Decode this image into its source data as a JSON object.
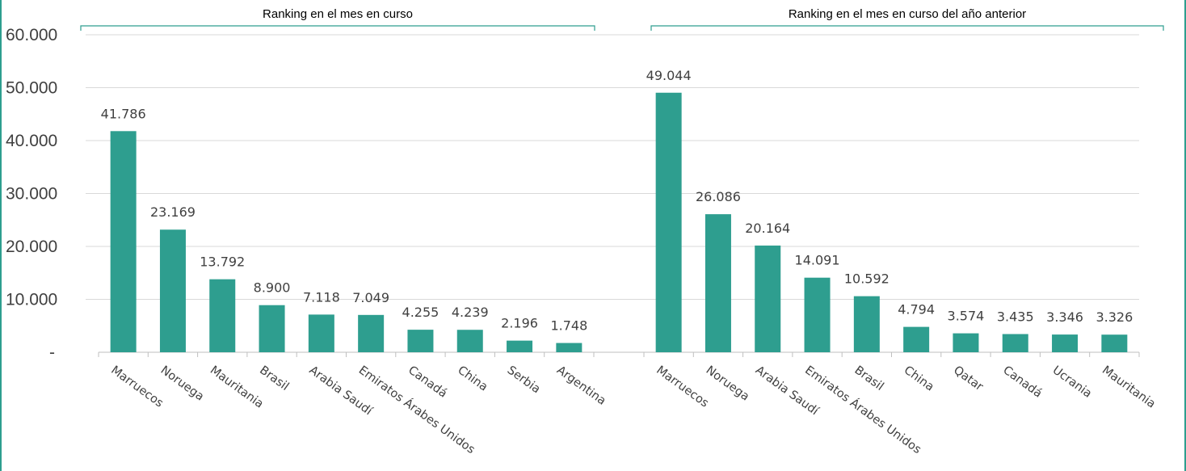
{
  "chart_data": {
    "type": "bar",
    "grid": true,
    "legend": "none",
    "ylim": [
      0,
      60000
    ],
    "yticks": [
      {
        "value": 0,
        "label": "-"
      },
      {
        "value": 10000,
        "label": "10.000"
      },
      {
        "value": 20000,
        "label": "20.000"
      },
      {
        "value": 30000,
        "label": "30.000"
      },
      {
        "value": 40000,
        "label": "40.000"
      },
      {
        "value": 50000,
        "label": "50.000"
      },
      {
        "value": 60000,
        "label": "60.000"
      }
    ],
    "colors": {
      "bar": "#2e9e8f",
      "bracket": "#2e9e8f",
      "grid": "#d9d9d9",
      "axis": "#bfbfbf"
    },
    "groups": [
      {
        "title": "Ranking en el mes en curso",
        "categories": [
          "Marruecos",
          "Noruega",
          "Mauritania",
          "Brasil",
          "Arabia Saudí",
          "Emiratos Árabes Unidos",
          "Canadá",
          "China",
          "Serbia",
          "Argentina"
        ],
        "values": [
          41786,
          23169,
          13792,
          8900,
          7118,
          7049,
          4255,
          4239,
          2196,
          1748
        ],
        "labels": [
          "41.786",
          "23.169",
          "13.792",
          "8.900",
          "7.118",
          "7.049",
          "4.255",
          "4.239",
          "2.196",
          "1.748"
        ]
      },
      {
        "title": "Ranking en el mes en curso del año anterior",
        "categories": [
          "Marruecos",
          "Noruega",
          "Arabia Saudí",
          "Emiratos Árabes Unidos",
          "Brasil",
          "China",
          "Qatar",
          "Canadá",
          "Ucrania",
          "Mauritania"
        ],
        "values": [
          49044,
          26086,
          20164,
          14091,
          10592,
          4794,
          3574,
          3435,
          3346,
          3326
        ],
        "labels": [
          "49.044",
          "26.086",
          "20.164",
          "14.091",
          "10.592",
          "4.794",
          "3.574",
          "3.435",
          "3.346",
          "3.326"
        ]
      }
    ]
  }
}
